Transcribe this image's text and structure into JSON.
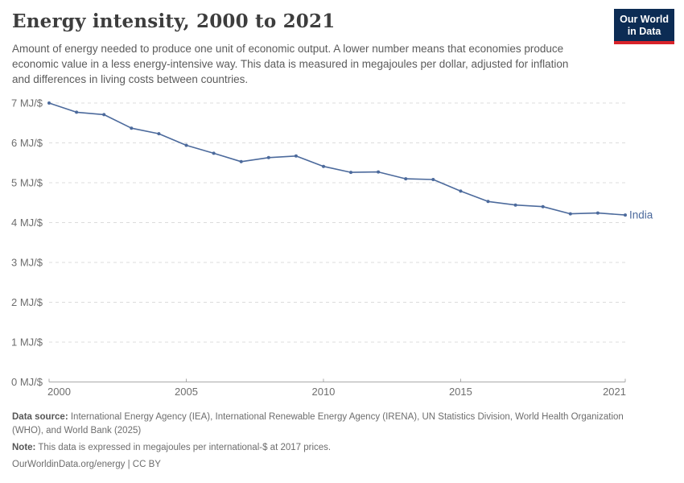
{
  "header": {
    "title": "Energy intensity, 2000 to 2021",
    "subtitle": "Amount of energy needed to produce one unit of economic output. A lower number means that economies produce economic value in a less energy-intensive way. This data is measured in megajoules per dollar, adjusted for inflation and differences in living costs between countries.",
    "logo": {
      "line1": "Our World",
      "line2": "in Data",
      "bg_color": "#0c2c54",
      "accent_color": "#d8232a"
    }
  },
  "chart_data": {
    "type": "line",
    "title": "Energy intensity, 2000 to 2021",
    "x": [
      2000,
      2001,
      2002,
      2003,
      2004,
      2005,
      2006,
      2007,
      2008,
      2009,
      2010,
      2011,
      2012,
      2013,
      2014,
      2015,
      2016,
      2017,
      2018,
      2019,
      2020,
      2021
    ],
    "series": [
      {
        "name": "India",
        "color": "#4c6a9c",
        "values": [
          7.0,
          6.77,
          6.71,
          6.37,
          6.23,
          5.94,
          5.74,
          5.53,
          5.63,
          5.67,
          5.41,
          5.26,
          5.27,
          5.1,
          5.08,
          4.79,
          4.53,
          4.44,
          4.4,
          4.22,
          4.24,
          4.19
        ]
      }
    ],
    "xlabel": "",
    "ylabel": "",
    "ylim": [
      0,
      7
    ],
    "y_ticks": [
      0,
      1,
      2,
      3,
      4,
      5,
      6,
      7
    ],
    "y_tick_suffix": " MJ/$",
    "x_ticks": [
      2000,
      2005,
      2010,
      2015,
      2021
    ],
    "grid": "horizontal-dashed",
    "legend_position": "end-of-line-label",
    "colors": {
      "grid": "#dcdcdc",
      "axis": "#a9a9a9",
      "tick_label": "#6e6e6e"
    }
  },
  "footer": {
    "datasource_label": "Data source:",
    "datasource_text": " International Energy Agency (IEA), International Renewable Energy Agency (IRENA), UN Statistics Division, World Health Organization (WHO), and World Bank (2025)",
    "note_label": "Note:",
    "note_text": " This data is expressed in megajoules per international-$ at 2017 prices.",
    "link": "OurWorldinData.org/energy | CC BY"
  }
}
